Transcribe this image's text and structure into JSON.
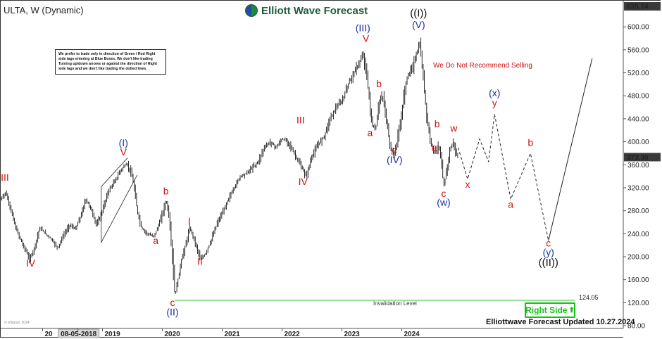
{
  "header": {
    "symbol_label": "ULTA, W (Dynamic)",
    "brand": "Elliott Wave Forecast"
  },
  "disclaimer": "We prefer to trade only in direction of Green / Red Right side tags entering at Blue Boxes. We don't like trading Turning up/down arrows or against the direction of Right side tags and we don't like trading the dotted lines.",
  "advice": "We Do Not Recommend Selling",
  "right_side_tag": "Right Side",
  "right_side_arrow": "⬆",
  "footer": "Elliottwave Forecast Updated 10.27.2024",
  "copyright": "© eSignal, 2024",
  "invalidation": {
    "label": "Invalidation Level",
    "value_label": "124.05",
    "value": 124.05
  },
  "colors": {
    "red": "#d01010",
    "blue": "#1a2ea0",
    "black": "#111111",
    "green_line": "#35c035",
    "price_box": "#3a3a3a"
  },
  "chart_data": {
    "type": "line",
    "title": "ULTA, W (Dynamic)",
    "y_axis": {
      "ticks": [
        80,
        120,
        160,
        200,
        240,
        280,
        320,
        360,
        400,
        440,
        480,
        520,
        560,
        600
      ],
      "tick_labels": [
        "80.00",
        "120.00",
        "160.00",
        "200.00",
        "240.00",
        "280.00",
        "320.00",
        "360.00",
        "400.00",
        "440.00",
        "480.00",
        "520.00",
        "560.00",
        "600.00"
      ],
      "range": [
        80,
        635.74
      ],
      "side": "right"
    },
    "x_axis": {
      "tick_labels": [
        "20",
        "08-05-2018",
        "2019",
        "2020",
        "2021",
        "2022",
        "2023",
        "2024"
      ],
      "tick_dates": [
        "2018.00",
        "2018.59",
        "2019.00",
        "2020.00",
        "2021.00",
        "2022.00",
        "2023.00",
        "2024.00"
      ],
      "range": [
        2017.3,
        2027.7
      ]
    },
    "price_boxes": [
      {
        "label": "635.74",
        "value": 635.74
      },
      {
        "label": "373.30",
        "value": 373.3
      }
    ],
    "price_series": {
      "name": "ULTA weekly",
      "points": [
        [
          2017.3,
          300
        ],
        [
          2017.38,
          312
        ],
        [
          2017.46,
          285
        ],
        [
          2017.55,
          250
        ],
        [
          2017.65,
          225
        ],
        [
          2017.72,
          210
        ],
        [
          2017.78,
          195
        ],
        [
          2017.86,
          215
        ],
        [
          2017.95,
          250
        ],
        [
          2018.05,
          240
        ],
        [
          2018.15,
          230
        ],
        [
          2018.25,
          215
        ],
        [
          2018.35,
          238
        ],
        [
          2018.45,
          255
        ],
        [
          2018.55,
          248
        ],
        [
          2018.65,
          275
        ],
        [
          2018.72,
          300
        ],
        [
          2018.8,
          285
        ],
        [
          2018.9,
          255
        ],
        [
          2018.98,
          275
        ],
        [
          2019.1,
          315
        ],
        [
          2019.2,
          330
        ],
        [
          2019.3,
          350
        ],
        [
          2019.4,
          362
        ],
        [
          2019.48,
          345
        ],
        [
          2019.52,
          325
        ],
        [
          2019.58,
          280
        ],
        [
          2019.65,
          250
        ],
        [
          2019.75,
          240
        ],
        [
          2019.85,
          235
        ],
        [
          2019.92,
          250
        ],
        [
          2020.0,
          275
        ],
        [
          2020.06,
          298
        ],
        [
          2020.1,
          280
        ],
        [
          2020.16,
          210
        ],
        [
          2020.21,
          130
        ],
        [
          2020.26,
          160
        ],
        [
          2020.32,
          195
        ],
        [
          2020.4,
          225
        ],
        [
          2020.45,
          250
        ],
        [
          2020.5,
          240
        ],
        [
          2020.56,
          220
        ],
        [
          2020.64,
          195
        ],
        [
          2020.72,
          205
        ],
        [
          2020.82,
          230
        ],
        [
          2020.92,
          260
        ],
        [
          2021.0,
          275
        ],
        [
          2021.1,
          300
        ],
        [
          2021.2,
          320
        ],
        [
          2021.3,
          340
        ],
        [
          2021.4,
          345
        ],
        [
          2021.5,
          355
        ],
        [
          2021.6,
          365
        ],
        [
          2021.7,
          390
        ],
        [
          2021.8,
          400
        ],
        [
          2021.9,
          390
        ],
        [
          2022.0,
          405
        ],
        [
          2022.1,
          400
        ],
        [
          2022.2,
          380
        ],
        [
          2022.3,
          360
        ],
        [
          2022.4,
          340
        ],
        [
          2022.5,
          375
        ],
        [
          2022.6,
          395
        ],
        [
          2022.7,
          410
        ],
        [
          2022.8,
          440
        ],
        [
          2022.9,
          460
        ],
        [
          2023.0,
          470
        ],
        [
          2023.1,
          500
        ],
        [
          2023.2,
          520
        ],
        [
          2023.3,
          540
        ],
        [
          2023.36,
          552
        ],
        [
          2023.42,
          510
        ],
        [
          2023.5,
          430
        ],
        [
          2023.56,
          420
        ],
        [
          2023.62,
          470
        ],
        [
          2023.68,
          480
        ],
        [
          2023.74,
          440
        ],
        [
          2023.8,
          395
        ],
        [
          2023.86,
          375
        ],
        [
          2023.92,
          400
        ],
        [
          2024.0,
          450
        ],
        [
          2024.06,
          500
        ],
        [
          2024.12,
          520
        ],
        [
          2024.18,
          530
        ],
        [
          2024.25,
          555
        ],
        [
          2024.3,
          570
        ],
        [
          2024.36,
          510
        ],
        [
          2024.42,
          440
        ],
        [
          2024.48,
          400
        ],
        [
          2024.55,
          380
        ],
        [
          2024.62,
          395
        ],
        [
          2024.66,
          360
        ],
        [
          2024.7,
          322
        ],
        [
          2024.74,
          345
        ],
        [
          2024.8,
          385
        ],
        [
          2024.86,
          400
        ],
        [
          2024.9,
          380
        ],
        [
          2024.94,
          373.3
        ]
      ]
    },
    "projection": {
      "dashed": [
        [
          2024.94,
          390
        ],
        [
          2025.1,
          335
        ],
        [
          2025.3,
          405
        ],
        [
          2025.45,
          365
        ],
        [
          2025.55,
          448
        ],
        [
          2025.82,
          300
        ],
        [
          2026.15,
          380
        ],
        [
          2026.45,
          228
        ]
      ],
      "solid": [
        [
          2026.45,
          228
        ],
        [
          2027.18,
          545
        ]
      ]
    },
    "channel": [
      [
        [
          2018.98,
          322
        ],
        [
          2019.42,
          372
        ]
      ],
      [
        [
          2018.98,
          225
        ],
        [
          2019.58,
          342
        ]
      ],
      [
        [
          2018.98,
          225
        ],
        [
          2018.98,
          322
        ]
      ]
    ],
    "wave_labels": [
      {
        "text": "III",
        "x": 2017.37,
        "y": 332,
        "color": "red"
      },
      {
        "text": "IV",
        "x": 2017.8,
        "y": 183,
        "color": "red"
      },
      {
        "text": "(I)",
        "x": 2019.35,
        "y": 392,
        "color": "blue"
      },
      {
        "text": "V",
        "x": 2019.35,
        "y": 376,
        "color": "red"
      },
      {
        "text": "a",
        "x": 2019.89,
        "y": 222,
        "color": "red"
      },
      {
        "text": "b",
        "x": 2020.06,
        "y": 308,
        "color": "red"
      },
      {
        "text": "c",
        "x": 2020.17,
        "y": 114,
        "color": "red"
      },
      {
        "text": "(II)",
        "x": 2020.17,
        "y": 98,
        "color": "blue"
      },
      {
        "text": "I",
        "x": 2020.45,
        "y": 256,
        "color": "red"
      },
      {
        "text": "II",
        "x": 2020.63,
        "y": 186,
        "color": "red"
      },
      {
        "text": "III",
        "x": 2022.31,
        "y": 432,
        "color": "red"
      },
      {
        "text": "IV",
        "x": 2022.35,
        "y": 325,
        "color": "red"
      },
      {
        "text": "(III)",
        "x": 2023.35,
        "y": 592,
        "color": "blue"
      },
      {
        "text": "V",
        "x": 2023.4,
        "y": 574,
        "color": "red"
      },
      {
        "text": "b",
        "x": 2023.62,
        "y": 495,
        "color": "red"
      },
      {
        "text": "a",
        "x": 2023.47,
        "y": 410,
        "color": "red"
      },
      {
        "text": "c",
        "x": 2023.88,
        "y": 380,
        "color": "red"
      },
      {
        "text": "(IV)",
        "x": 2023.88,
        "y": 363,
        "color": "blue"
      },
      {
        "text": "((I))",
        "x": 2024.28,
        "y": 618,
        "color": "black"
      },
      {
        "text": "(V)",
        "x": 2024.28,
        "y": 598,
        "color": "blue"
      },
      {
        "text": "b",
        "x": 2024.59,
        "y": 425,
        "color": "red"
      },
      {
        "text": "a",
        "x": 2024.54,
        "y": 384,
        "color": "red"
      },
      {
        "text": "w",
        "x": 2024.87,
        "y": 418,
        "color": "red"
      },
      {
        "text": "c",
        "x": 2024.7,
        "y": 304,
        "color": "red"
      },
      {
        "text": "(w)",
        "x": 2024.7,
        "y": 289,
        "color": "blue"
      },
      {
        "text": "x",
        "x": 2025.1,
        "y": 320,
        "color": "red"
      },
      {
        "text": "(x)",
        "x": 2025.55,
        "y": 479,
        "color": "blue"
      },
      {
        "text": "y",
        "x": 2025.55,
        "y": 462,
        "color": "red"
      },
      {
        "text": "b",
        "x": 2026.15,
        "y": 393,
        "color": "red"
      },
      {
        "text": "a",
        "x": 2025.82,
        "y": 285,
        "color": "red"
      },
      {
        "text": "c",
        "x": 2026.45,
        "y": 218,
        "color": "red"
      },
      {
        "text": "(y)",
        "x": 2026.45,
        "y": 202,
        "color": "blue"
      },
      {
        "text": "((II))",
        "x": 2026.45,
        "y": 184,
        "color": "black"
      }
    ]
  }
}
